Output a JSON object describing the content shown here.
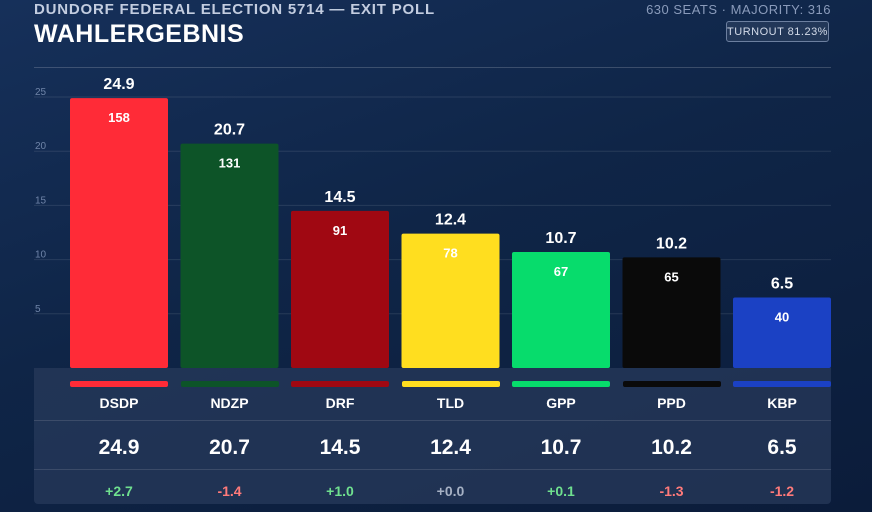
{
  "header": {
    "kicker": "DUNDORF FEDERAL ELECTION 5714 — EXIT POLL",
    "title": "WAHLERGEBNIS",
    "seats_info": "630 SEATS · MAJORITY: 316",
    "turnout": "TURNOUT 81.23%"
  },
  "colors": {
    "positive": "#6fe08f",
    "negative": "#ff7a7a",
    "neutral": "#a6b1c4"
  },
  "chart_data": {
    "type": "bar",
    "title": "",
    "xlabel": "",
    "ylabel": "",
    "ylim": [
      0,
      25
    ],
    "yticks": [
      5,
      10,
      15,
      20,
      25
    ],
    "grid": true,
    "categories": [
      "DSDP",
      "NDZP",
      "DRF",
      "TLD",
      "GPP",
      "PPD",
      "KBP"
    ],
    "values": [
      24.9,
      20.7,
      14.5,
      12.4,
      10.7,
      10.2,
      6.5
    ],
    "value_labels": [
      "24.9",
      "20.7",
      "14.5",
      "12.4",
      "10.7",
      "10.2",
      "6.5"
    ],
    "seats": [
      "158",
      "131",
      "91",
      "78",
      "67",
      "65",
      "40"
    ],
    "changes": [
      "+2.7",
      "-1.4",
      "+1.0",
      "+0.0",
      "+0.1",
      "-1.3",
      "-1.2"
    ],
    "change_sign": [
      "positive",
      "negative",
      "positive",
      "neutral",
      "positive",
      "negative",
      "negative"
    ],
    "colors": [
      "#ff2b37",
      "#0d5428",
      "#a00812",
      "#ffde1f",
      "#07dc6c",
      "#0a0a0a",
      "#1b41c4"
    ]
  }
}
